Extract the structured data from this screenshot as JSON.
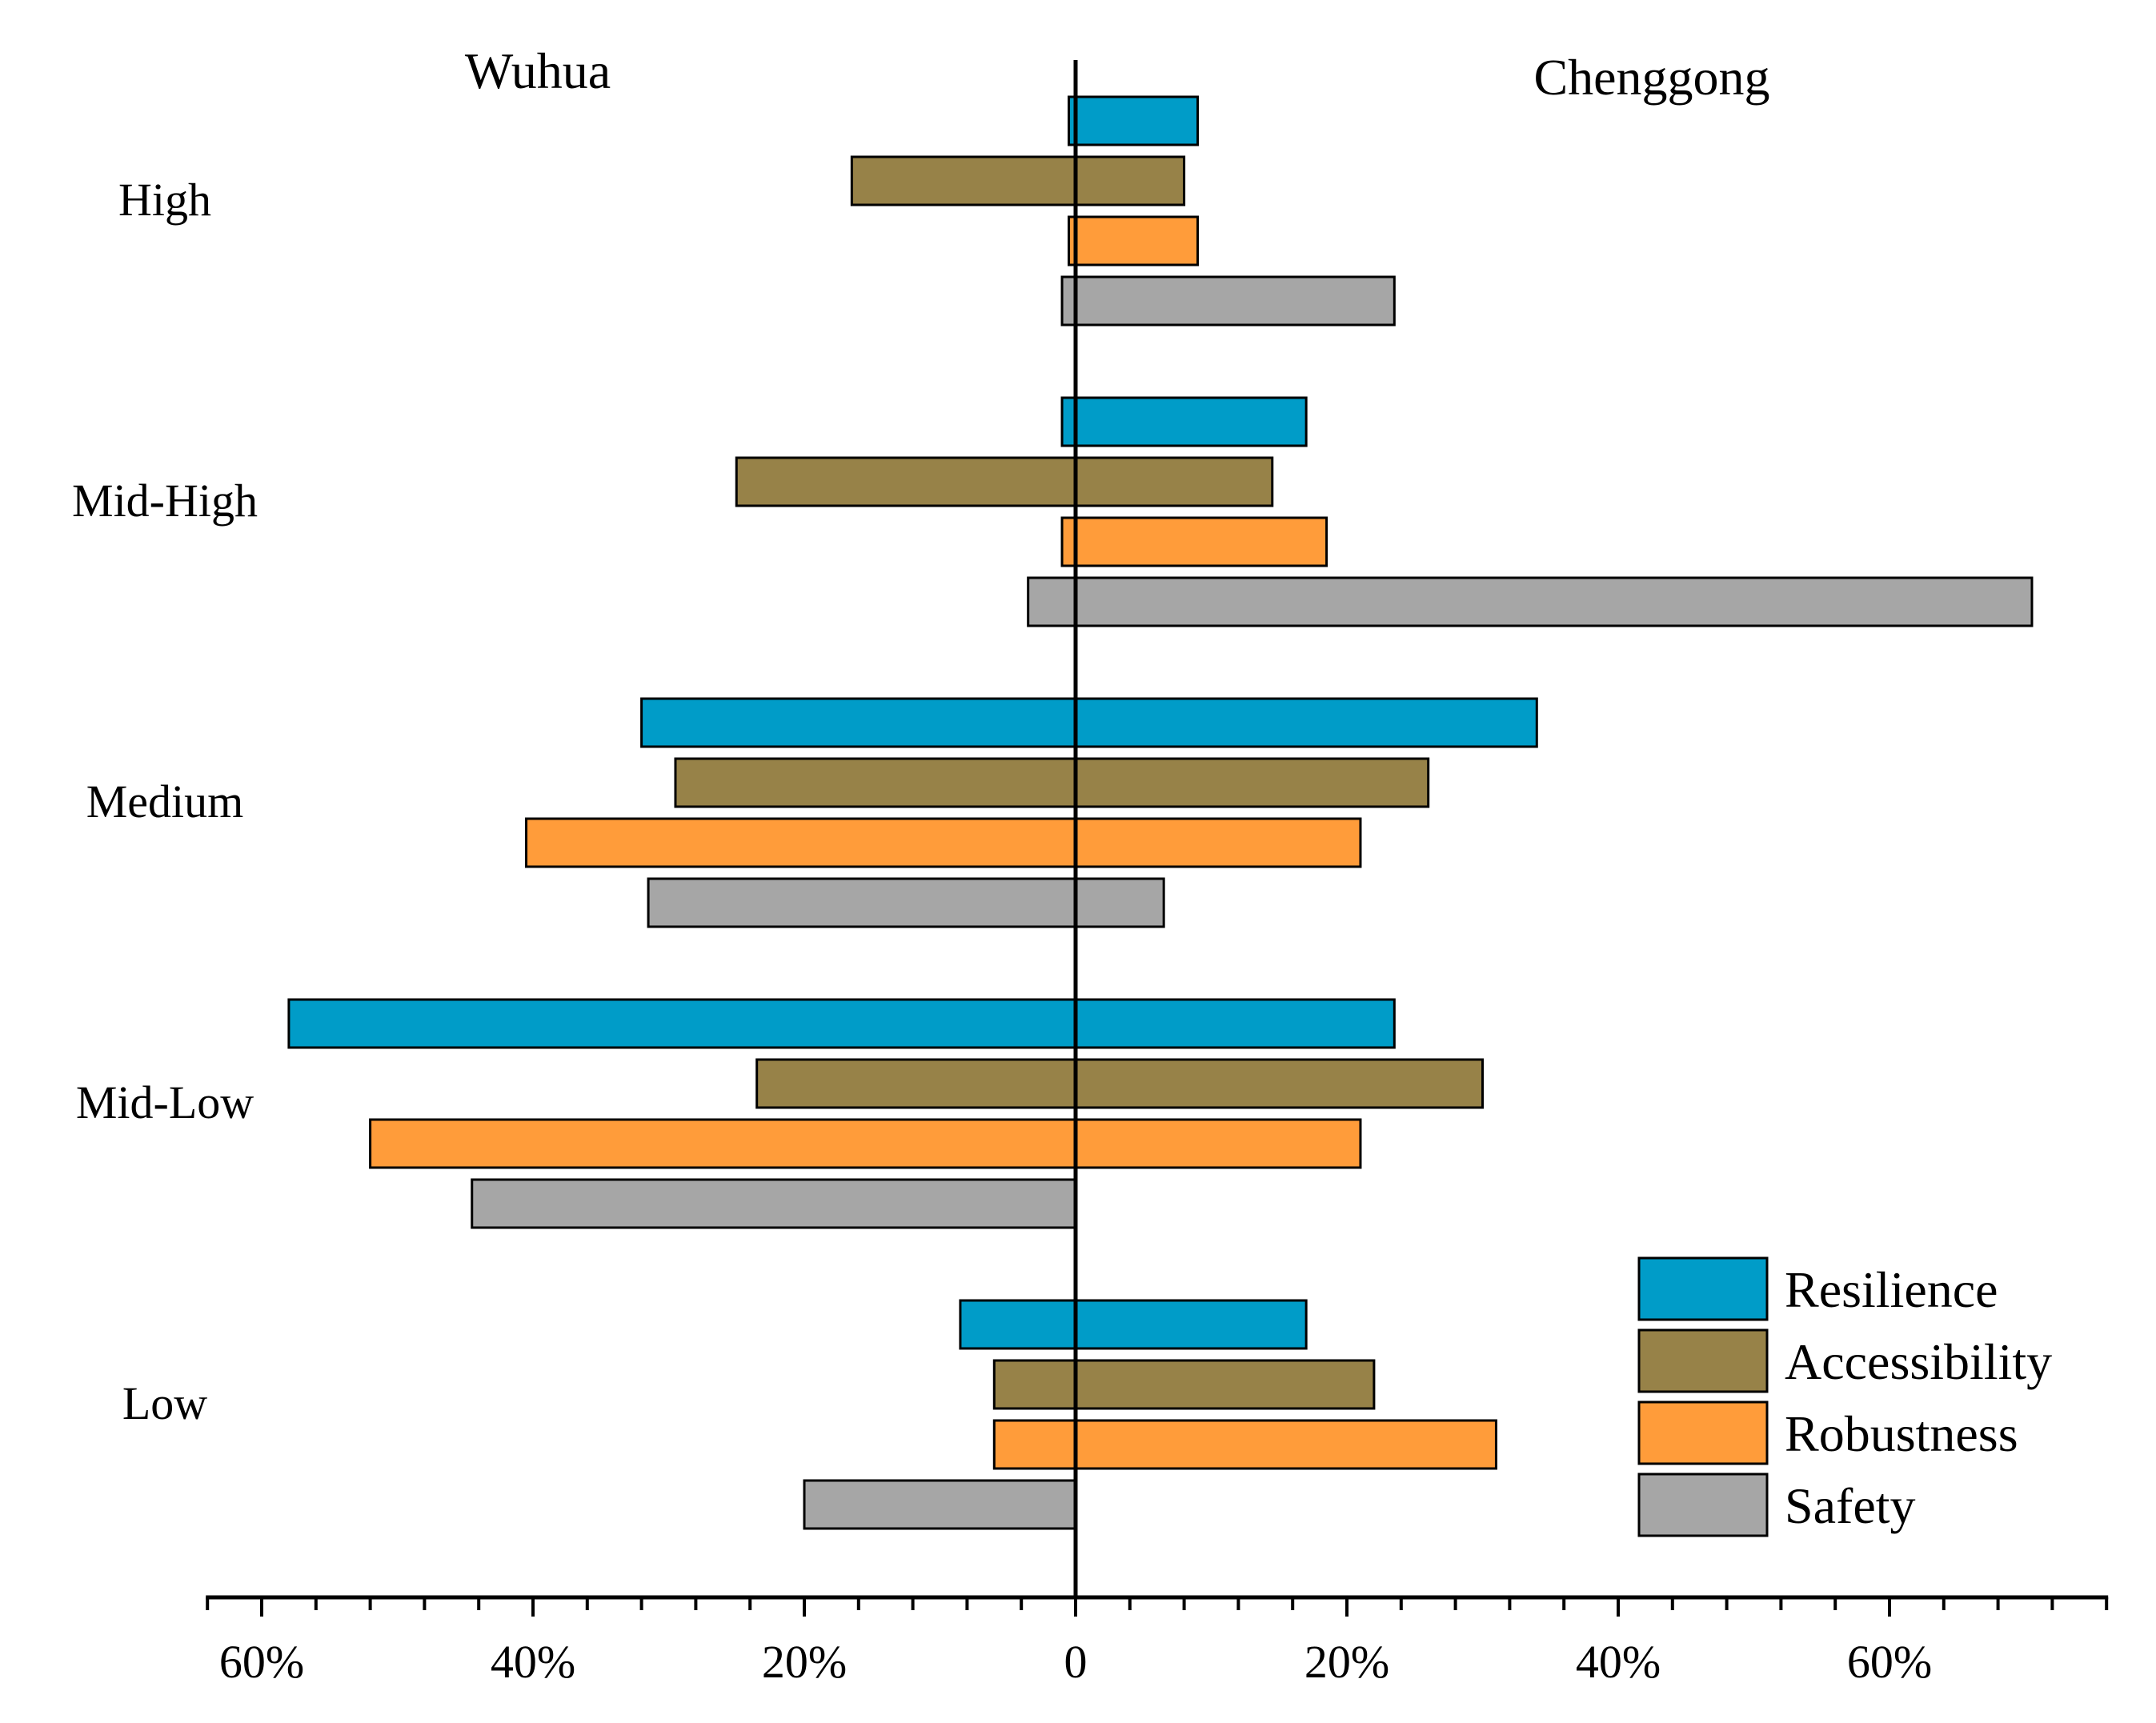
{
  "chart_data": {
    "type": "bar",
    "orientation": "horizontal-diverging",
    "left_title": "Wuhua",
    "right_title": "Chenggong",
    "categories": [
      "High",
      "Mid-High",
      "Medium",
      "Mid-Low",
      "Low"
    ],
    "series": [
      {
        "name": "Resilience",
        "color": "#009CC8",
        "left": [
          0.5,
          1,
          32,
          58,
          8.5
        ],
        "right": [
          9,
          17,
          34,
          23.5,
          17
        ]
      },
      {
        "name": "Accessibility",
        "color": "#978248",
        "left": [
          16.5,
          25,
          29.5,
          23.5,
          6
        ],
        "right": [
          8,
          14.5,
          26,
          30,
          22
        ]
      },
      {
        "name": "Robustness",
        "color": "#FF9C3A",
        "left": [
          0.5,
          1,
          40.5,
          52,
          6
        ],
        "right": [
          9,
          18.5,
          21,
          21,
          31
        ]
      },
      {
        "name": "Safety",
        "color": "#A6A6A6",
        "left": [
          1,
          3.5,
          31.5,
          44.5,
          20
        ],
        "right": [
          23.5,
          70.5,
          6.5,
          0,
          0
        ]
      }
    ],
    "x_unit": "%",
    "xlim": [
      -64,
      76
    ],
    "tick_labels": [
      {
        "value": -60,
        "label": "60%"
      },
      {
        "value": -40,
        "label": "40%"
      },
      {
        "value": -20,
        "label": "20%"
      },
      {
        "value": 0,
        "label": "0"
      },
      {
        "value": 20,
        "label": "20%"
      },
      {
        "value": 40,
        "label": "40%"
      },
      {
        "value": 60,
        "label": "60%"
      }
    ],
    "legend_position": "bottom-right"
  }
}
